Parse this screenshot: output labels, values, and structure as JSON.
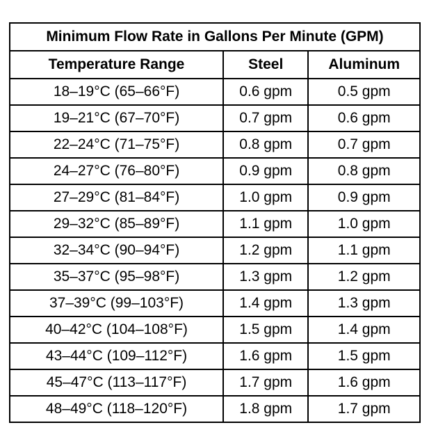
{
  "table": {
    "title": "Minimum Flow Rate in Gallons Per Minute (GPM)",
    "headers": [
      "Temperature Range",
      "Steel",
      "Aluminum"
    ],
    "rows": [
      [
        "18–19°C (65–66°F)",
        "0.6 gpm",
        "0.5 gpm"
      ],
      [
        "19–21°C (67–70°F)",
        "0.7 gpm",
        "0.6 gpm"
      ],
      [
        "22–24°C (71–75°F)",
        "0.8 gpm",
        "0.7 gpm"
      ],
      [
        "24–27°C (76–80°F)",
        "0.9 gpm",
        "0.8 gpm"
      ],
      [
        "27–29°C (81–84°F)",
        "1.0 gpm",
        "0.9 gpm"
      ],
      [
        "29–32°C (85–89°F)",
        "1.1 gpm",
        "1.0 gpm"
      ],
      [
        "32–34°C (90–94°F)",
        "1.2 gpm",
        "1.1 gpm"
      ],
      [
        "35–37°C (95–98°F)",
        "1.3 gpm",
        "1.2 gpm"
      ],
      [
        "37–39°C (99–103°F)",
        "1.4 gpm",
        "1.3 gpm"
      ],
      [
        "40–42°C (104–108°F)",
        "1.5 gpm",
        "1.4 gpm"
      ],
      [
        "43–44°C (109–112°F)",
        "1.6 gpm",
        "1.5 gpm"
      ],
      [
        "45–47°C (113–117°F)",
        "1.7 gpm",
        "1.6 gpm"
      ],
      [
        "48–49°C (118–120°F)",
        "1.8 gpm",
        "1.7 gpm"
      ]
    ]
  }
}
